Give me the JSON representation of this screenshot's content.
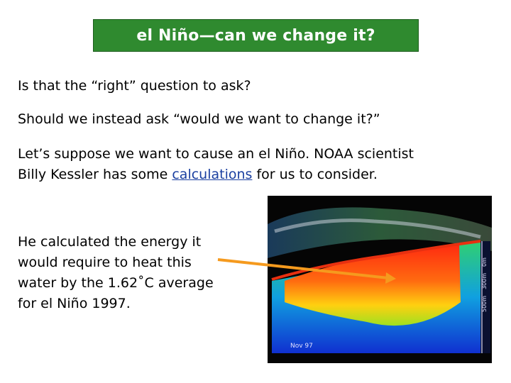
{
  "title": "el Niño—can we change it?",
  "para1": "Is that the “right” question to ask?",
  "para2": "Should we instead ask “would we want to change it?”",
  "para3": {
    "line1": "Let’s suppose we want to cause an el Niño.  NOAA scientist",
    "line2_before": "Billy Kessler has some ",
    "link": "calculations",
    "line2_after": " for us to consider."
  },
  "para4": {
    "line1": "He calculated the energy it",
    "line2": "would require to heat this",
    "line3": "water by the 1.62˚C average",
    "line4": "for el Niño 1997."
  },
  "image": {
    "date_label": "Nov 97",
    "depth_labels": [
      "0m",
      "300m",
      "500m"
    ]
  },
  "colors": {
    "title_bg": "#2f8a2f",
    "arrow": "#f59a1e",
    "link": "#1a3fa0"
  }
}
